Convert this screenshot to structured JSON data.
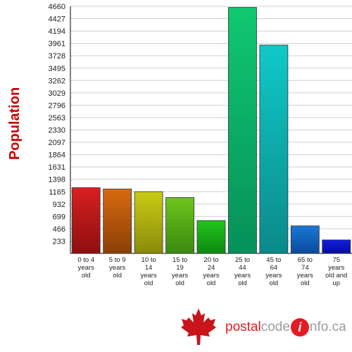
{
  "chart_data": {
    "type": "bar",
    "ylabel": "Population",
    "ylim": [
      0,
      4660
    ],
    "yticks": [
      233,
      466,
      699,
      932,
      1165,
      1398,
      1631,
      1864,
      2097,
      2330,
      2563,
      2796,
      3029,
      3262,
      3495,
      3728,
      3961,
      4194,
      4427,
      4660
    ],
    "categories": [
      "0 to 4\nyears\nold",
      "5 to 9\nyears\nold",
      "10 to\n14\nyears\nold",
      "15 to\n19\nyears\nold",
      "20 to\n24\nyears\nold",
      "25 to\n44\nyears\nold",
      "45 to\n64\nyears\nold",
      "65 to\n74\nyears\nold",
      "75\nyears\nold and\nup"
    ],
    "values": [
      1240,
      1215,
      1165,
      1055,
      620,
      4640,
      3930,
      520,
      255
    ],
    "grid": true,
    "bar_colors": [
      [
        "#d62020",
        "#8e0f0f"
      ],
      [
        "#d86a10",
        "#8a3e06"
      ],
      [
        "#c9cc14",
        "#8a8a0a"
      ],
      [
        "#6cc51c",
        "#3a8a10"
      ],
      [
        "#22c41c",
        "#0f8a10"
      ],
      [
        "#10c870",
        "#06905a"
      ],
      [
        "#10c8c8",
        "#0b8a8a"
      ],
      [
        "#1a78d8",
        "#0a4a9c"
      ],
      [
        "#1020e0",
        "#060c9c"
      ]
    ]
  },
  "logo": {
    "part1": "postal",
    "part2": "code",
    "part3": "i",
    "part4": "nfo.ca",
    "red": "#e31b23",
    "grey": "#9c9c9c"
  }
}
